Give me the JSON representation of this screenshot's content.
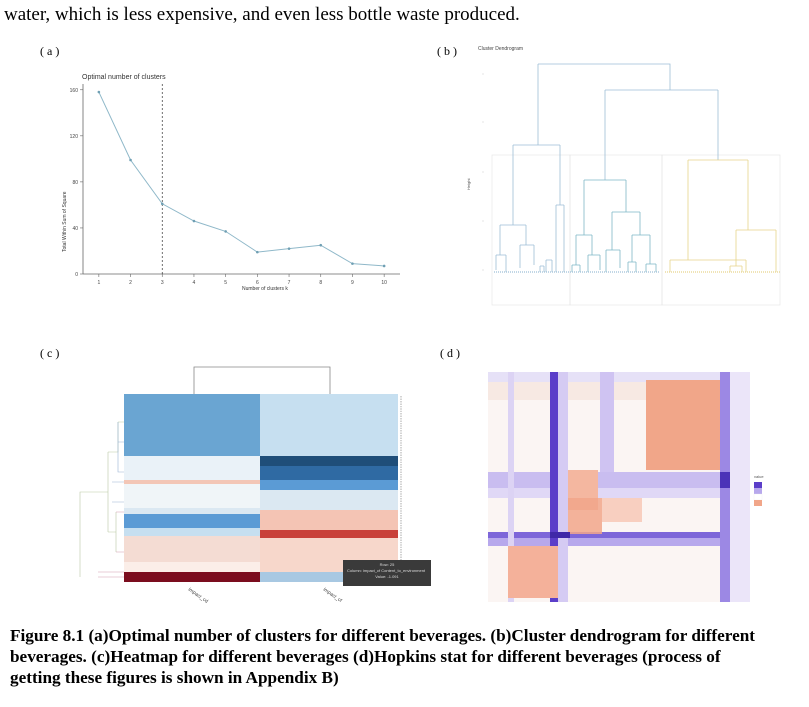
{
  "intro_text": "water, which is less expensive, and even less bottle waste produced.",
  "panels": {
    "a": {
      "label": "( a )",
      "chart_data": {
        "type": "line",
        "title": "Optimal number of clusters",
        "xlabel": "Number of clusters k",
        "ylabel": "Total Within Sum of Square",
        "x": [
          1,
          2,
          3,
          4,
          5,
          6,
          7,
          8,
          9,
          10
        ],
        "values": [
          158,
          99,
          61,
          46,
          37,
          19,
          22,
          25,
          9,
          7
        ],
        "ylim": [
          0,
          165
        ],
        "yticks": [
          "0",
          "40",
          "80",
          "120",
          "160"
        ],
        "xticks": [
          "1",
          "2",
          "3",
          "4",
          "5",
          "6",
          "7",
          "8",
          "9",
          "10"
        ],
        "optimal_k": 3,
        "line_color": "#8fb8c9"
      }
    },
    "b": {
      "label": "( b )",
      "title": "Cluster Dendrogram",
      "ylabel": "Height",
      "colors": [
        "#9dbfd6",
        "#7fb8c6",
        "#e6d48a"
      ]
    },
    "c": {
      "label": "( c )",
      "column_labels": [
        "impact_cd",
        "impact_cf"
      ],
      "tooltip": {
        "row": "Row: 25",
        "column": "Column: impact_cf Content_to_environment",
        "value": "Value: -1.091"
      },
      "colors": {
        "dark_blue": "#1f4e79",
        "mid_blue": "#5b9bd5",
        "light_blue": "#c6dff0",
        "pale": "#eef4f8",
        "salmon": "#f4c4b4",
        "dark_red": "#7b0d1e"
      }
    },
    "d": {
      "label": "( d )",
      "legend_title": "value",
      "colors": {
        "high": "#5b3ec9",
        "low": "#f1a689",
        "mid": "#ffffff"
      }
    }
  },
  "caption": "Figure 8.1 (a)Optimal number of clusters for different beverages. (b)Cluster dendrogram for different beverages. (c)Heatmap for different beverages (d)Hopkins stat for different beverages (process of getting these figures is shown in Appendix B)"
}
